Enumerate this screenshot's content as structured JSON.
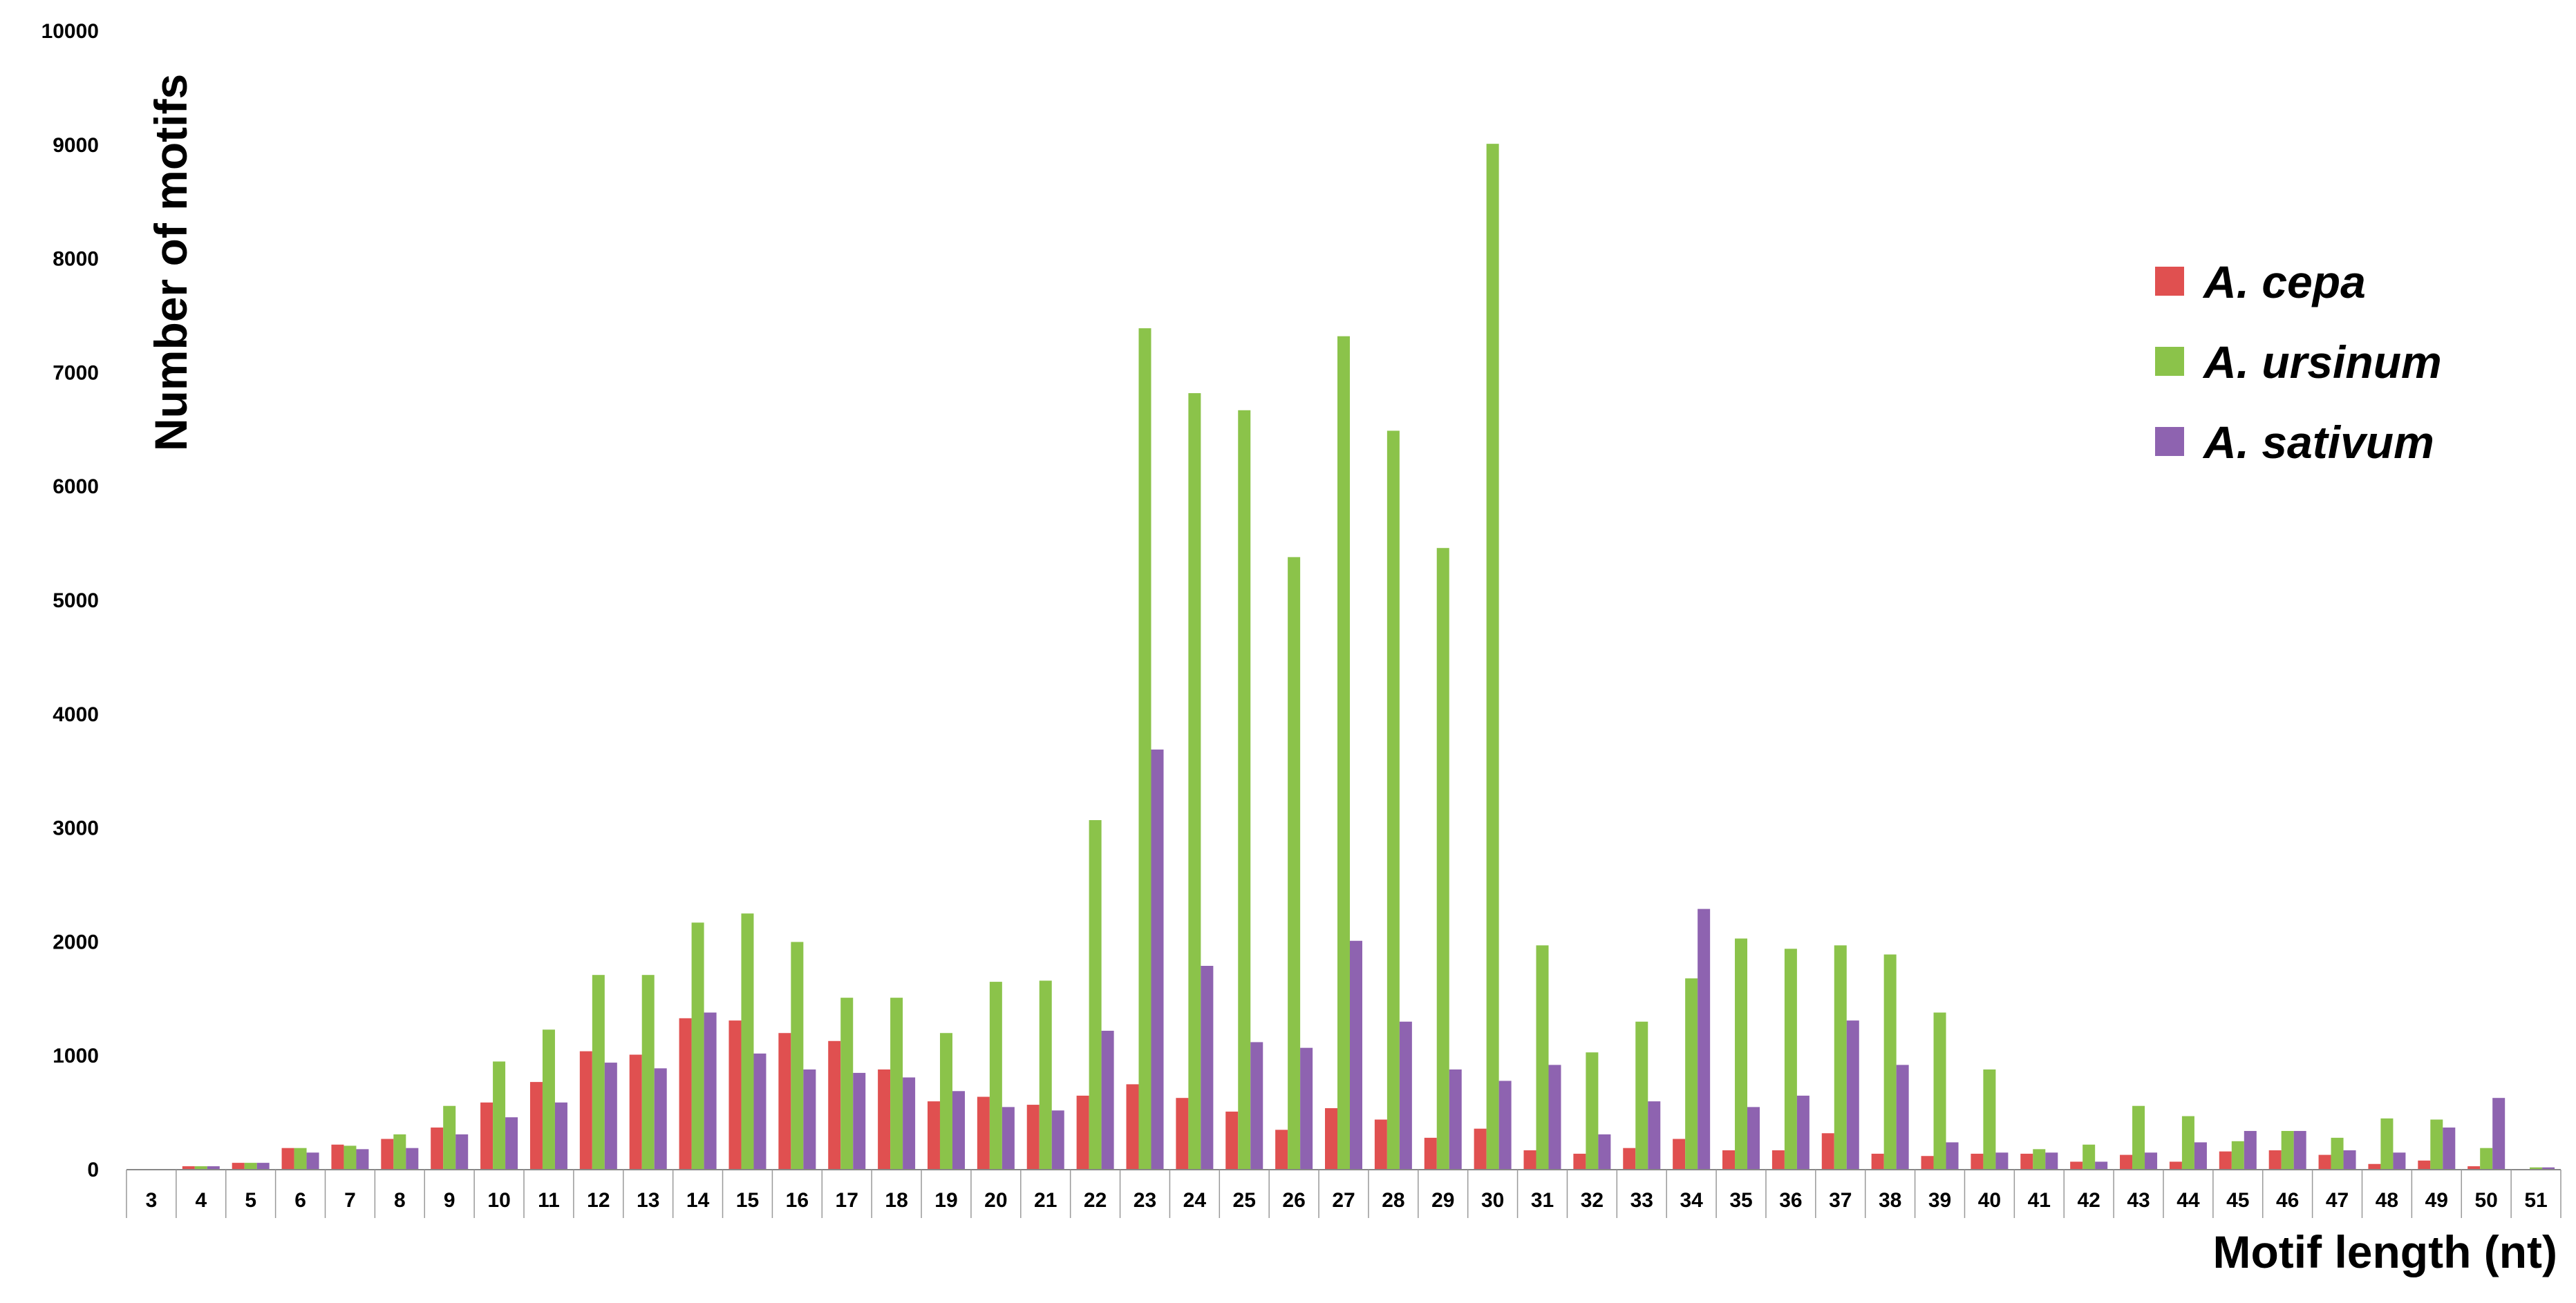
{
  "chart_data": {
    "type": "bar",
    "xlabel": "Motif length (nt)",
    "ylabel": "Number of motifs",
    "ylim": [
      0,
      10000
    ],
    "yticks": [
      0,
      1000,
      2000,
      3000,
      4000,
      5000,
      6000,
      7000,
      8000,
      9000,
      10000
    ],
    "grid": false,
    "legend_position": "top-right",
    "categories": [
      "3",
      "4",
      "5",
      "6",
      "7",
      "8",
      "9",
      "10",
      "11",
      "12",
      "13",
      "14",
      "15",
      "16",
      "17",
      "18",
      "19",
      "20",
      "21",
      "22",
      "23",
      "24",
      "25",
      "26",
      "27",
      "28",
      "29",
      "30",
      "31",
      "32",
      "33",
      "34",
      "35",
      "36",
      "37",
      "38",
      "39",
      "40",
      "41",
      "42",
      "43",
      "44",
      "45",
      "46",
      "47",
      "48",
      "49",
      "50",
      "51"
    ],
    "series": [
      {
        "name": "A. cepa",
        "color": "#e05050",
        "values": [
          0,
          30,
          60,
          190,
          220,
          270,
          370,
          590,
          770,
          1040,
          1010,
          1330,
          1310,
          1200,
          1130,
          880,
          600,
          640,
          570,
          650,
          750,
          630,
          510,
          350,
          540,
          440,
          280,
          360,
          170,
          140,
          190,
          270,
          170,
          170,
          320,
          140,
          120,
          140,
          140,
          70,
          130,
          70,
          160,
          170,
          130,
          50,
          80,
          30,
          0
        ]
      },
      {
        "name": "A. ursinum",
        "color": "#8bc34a",
        "values": [
          0,
          30,
          60,
          190,
          210,
          310,
          560,
          950,
          1230,
          1710,
          1710,
          2170,
          2250,
          2000,
          1510,
          1510,
          1200,
          1650,
          1660,
          3070,
          7390,
          6820,
          6670,
          5380,
          7320,
          6490,
          5460,
          9010,
          1970,
          1030,
          1300,
          1680,
          2030,
          1940,
          1970,
          1890,
          1380,
          880,
          180,
          220,
          560,
          470,
          250,
          340,
          280,
          450,
          440,
          190,
          20
        ]
      },
      {
        "name": "A. sativum",
        "color": "#8e63b0",
        "values": [
          0,
          30,
          60,
          150,
          180,
          190,
          310,
          460,
          590,
          940,
          890,
          1380,
          1020,
          880,
          850,
          810,
          690,
          550,
          520,
          1220,
          3690,
          1790,
          1120,
          1070,
          2010,
          1300,
          880,
          780,
          920,
          310,
          600,
          2290,
          550,
          650,
          1310,
          920,
          240,
          150,
          150,
          70,
          150,
          240,
          340,
          340,
          170,
          150,
          370,
          630,
          20
        ]
      }
    ]
  }
}
